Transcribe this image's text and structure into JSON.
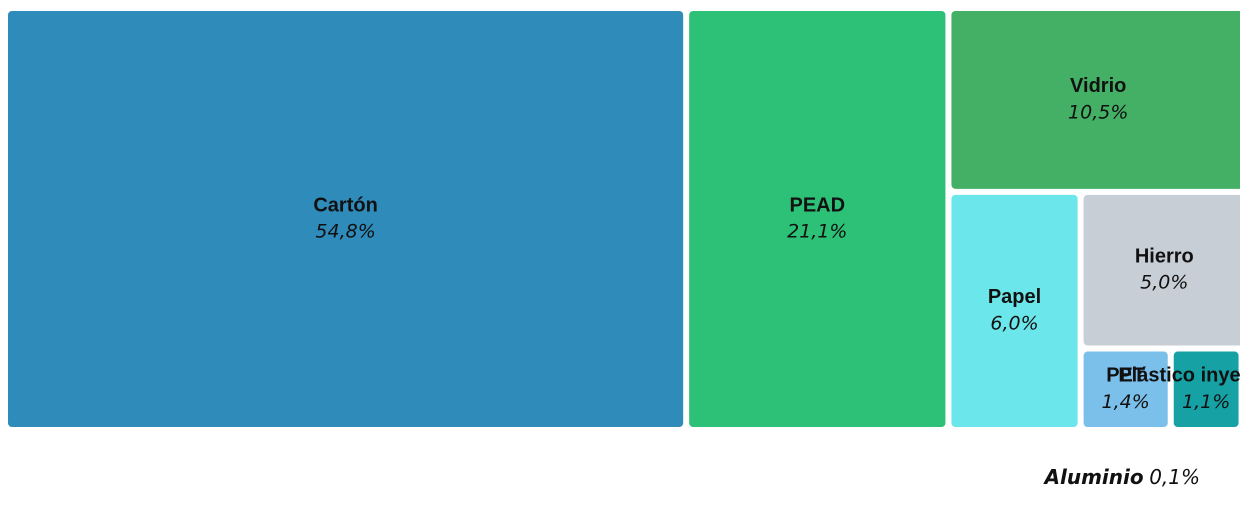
{
  "chart_data": {
    "type": "treemap",
    "categories": [
      "Cartón",
      "PEAD",
      "Vidrio",
      "Papel",
      "Hierro",
      "PET",
      "Plástico inyectado",
      "Aluminio"
    ],
    "values": [
      54.8,
      21.1,
      10.5,
      6.0,
      5.0,
      1.4,
      1.1,
      0.1
    ],
    "value_labels": [
      "54,8%",
      "21,1%",
      "10,5%",
      "6,0%",
      "5,0%",
      "1,4%",
      "1,1%",
      "0,1%"
    ],
    "colors": [
      "#2e8bba",
      "#2dc178",
      "#43b065",
      "#6be6ea",
      "#c8ced6",
      "#7bbfeb",
      "#16a2a5",
      "#8a8a8a"
    ]
  }
}
